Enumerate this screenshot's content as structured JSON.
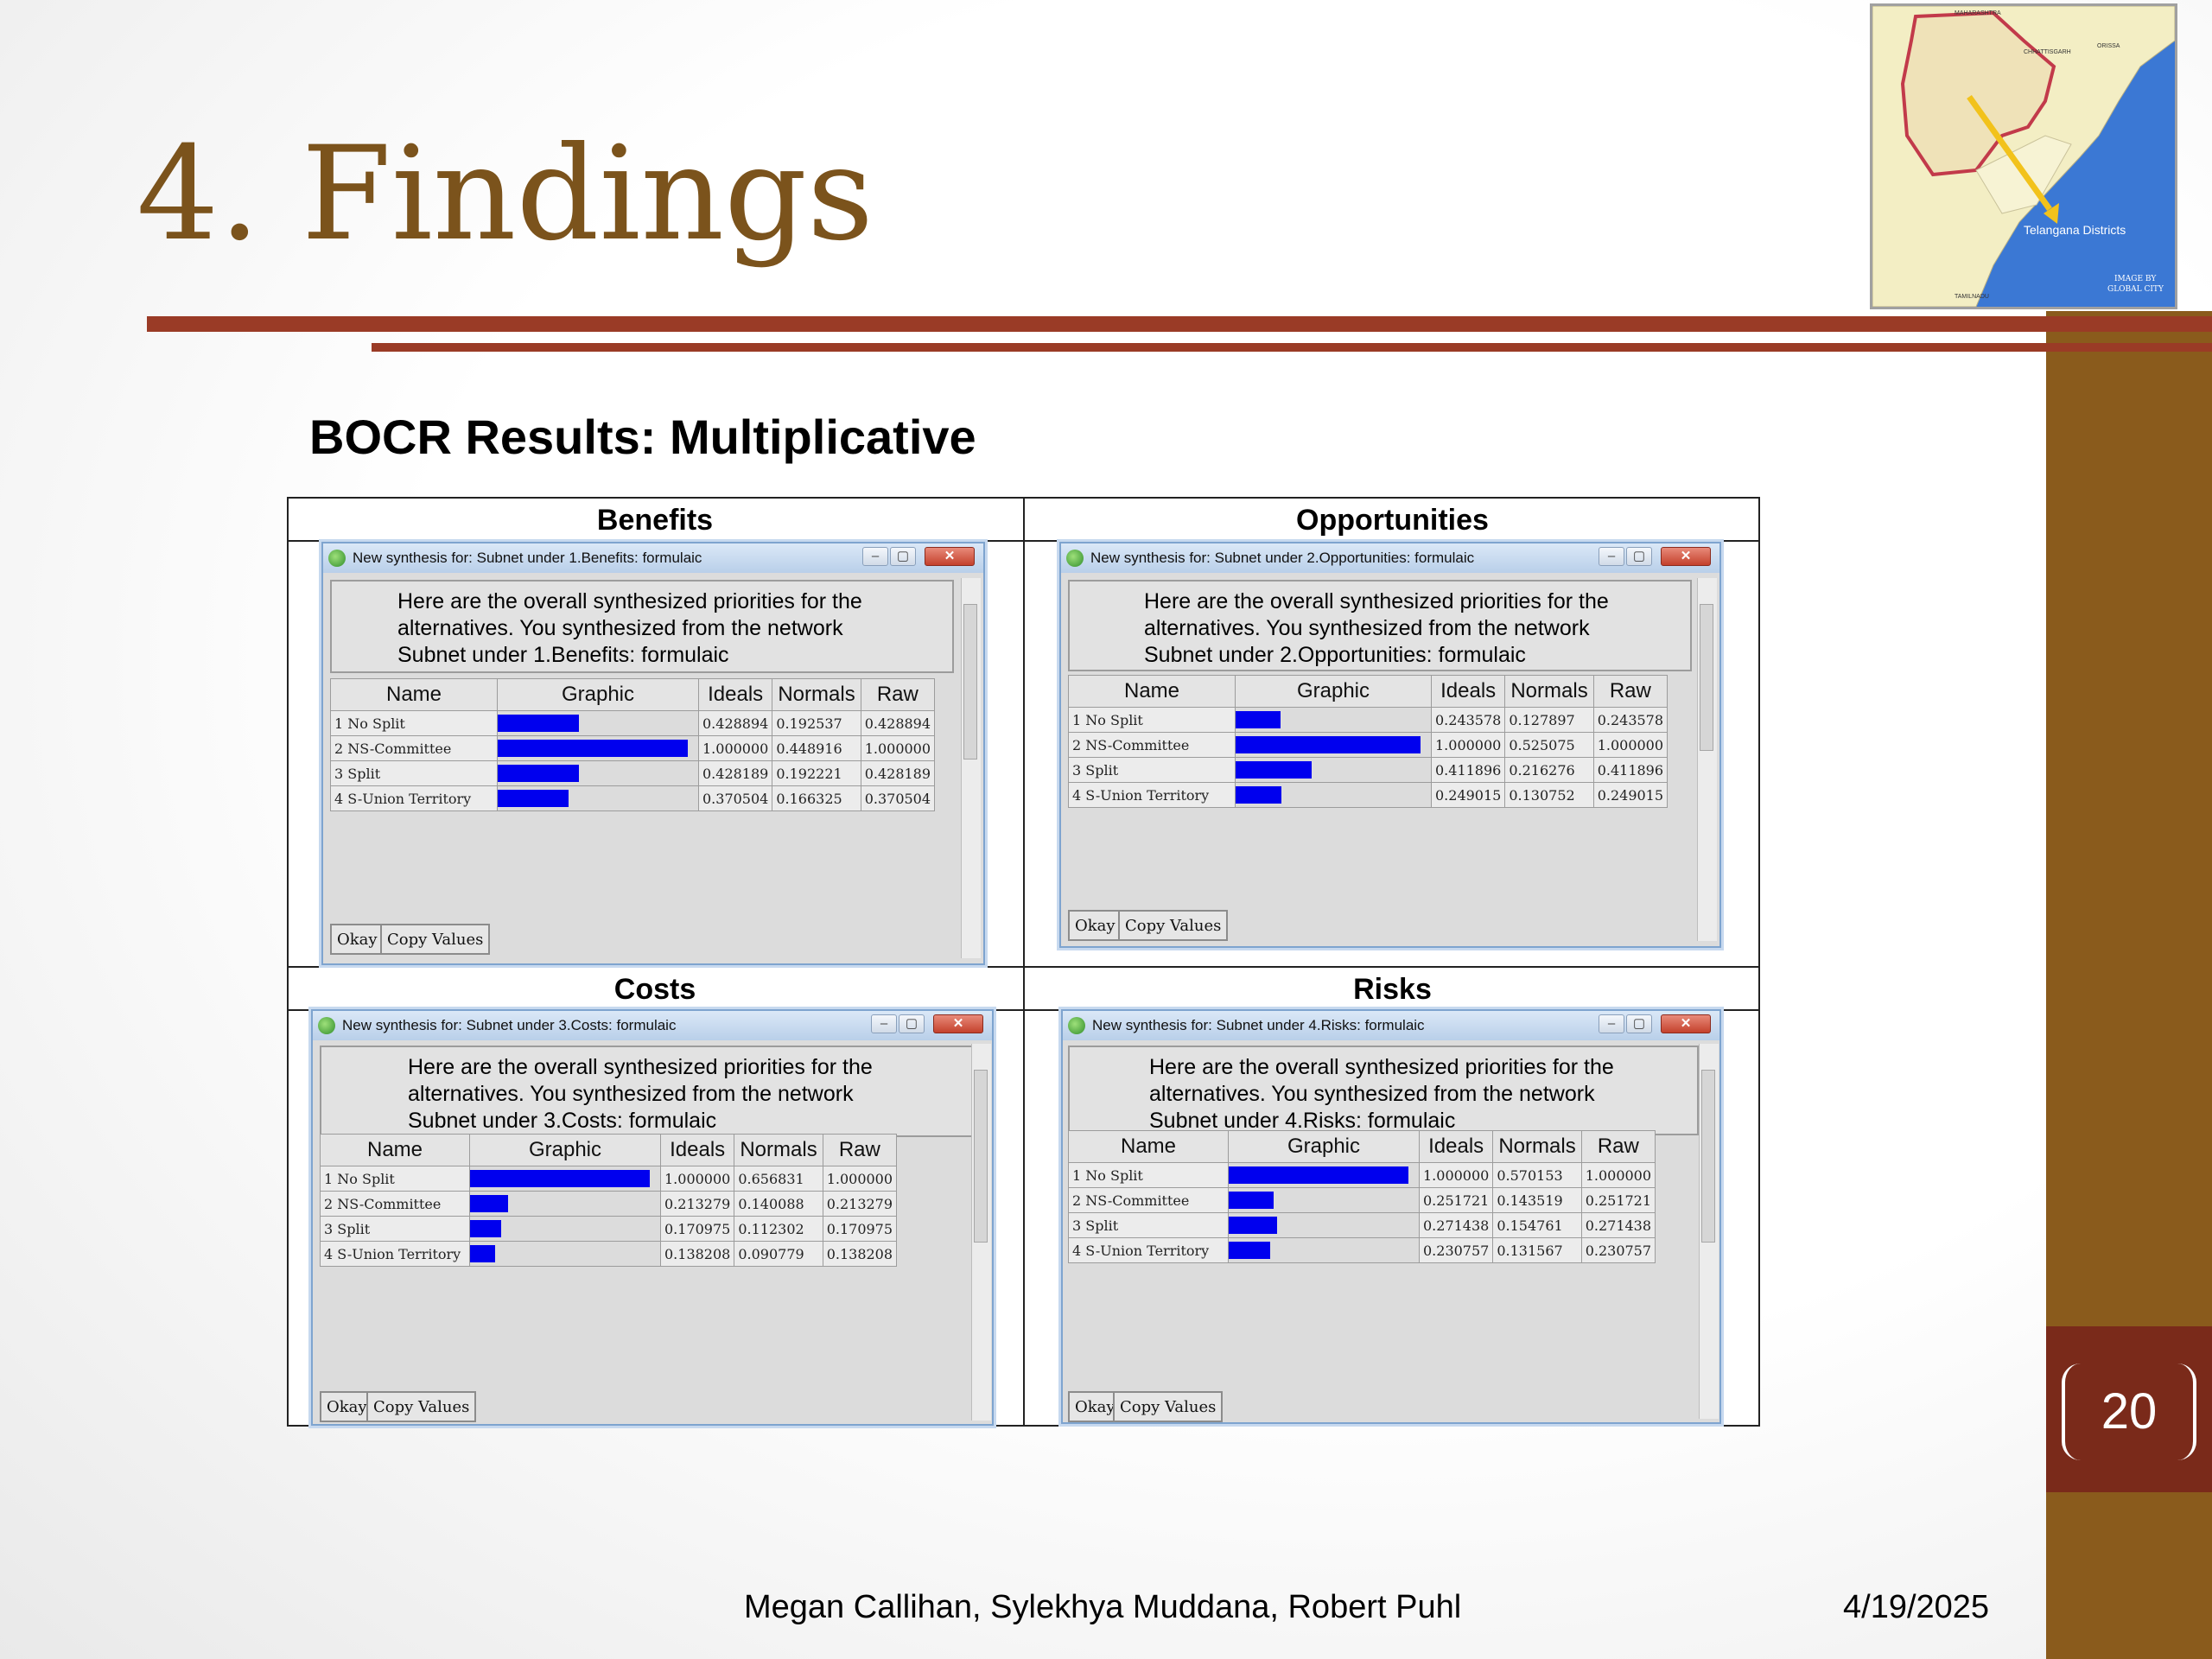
{
  "slide": {
    "title": "4. Findings",
    "subtitle": "BOCR Results:  Multiplicative",
    "page_number": "20",
    "footer_authors": "Megan Callihan, Sylekhya Muddana, Robert Puhl",
    "footer_date": "4/19/2025"
  },
  "map": {
    "label": "Telangana Districts",
    "credit_line1": "IMAGE BY",
    "credit_line2": "GLOBAL CITY",
    "top_label": "MAHARASHTRA",
    "chhattisgarh": "CHHATTISGARH",
    "orissa": "ORISSA",
    "tamilnadu": "TAMILNADU",
    "colors": {
      "land": "#f3eec4",
      "sea": "#3b78d4",
      "border": "#c23a4a",
      "arrow": "#f2c21b"
    }
  },
  "colors": {
    "bar": "#0000ee",
    "title": "#7b531c",
    "rule": "#9a3b26",
    "sidebar": "#8a5b1c",
    "badge": "#7a2a1a"
  },
  "quadrants": [
    {
      "heading": "Benefits",
      "window_title": "New synthesis for: Subnet under 1.Benefits: formulaic",
      "message": [
        "Here are the overall synthesized priorities for the",
        "alternatives.  You synthesized from the network",
        "Subnet under 1.Benefits: formulaic"
      ],
      "columns": [
        "Name",
        "Graphic",
        "Ideals",
        "Normals",
        "Raw"
      ],
      "rows": [
        {
          "name": "1 No Split",
          "ideal": "0.428894",
          "normal": "0.192537",
          "raw": "0.428894",
          "value": 0.428894
        },
        {
          "name": "2 NS-Committee",
          "ideal": "1.000000",
          "normal": "0.448916",
          "raw": "1.000000",
          "value": 1.0
        },
        {
          "name": "3 Split",
          "ideal": "0.428189",
          "normal": "0.192221",
          "raw": "0.428189",
          "value": 0.428189
        },
        {
          "name": "4 S-Union Territory",
          "ideal": "0.370504",
          "normal": "0.166325",
          "raw": "0.370504",
          "value": 0.370504
        }
      ],
      "buttons": [
        "Okay",
        "Copy Values"
      ]
    },
    {
      "heading": "Opportunities",
      "window_title": "New synthesis for: Subnet under 2.Opportunities: formulaic",
      "message": [
        "Here are the overall synthesized priorities for the",
        "alternatives.  You synthesized from the network",
        "Subnet under 2.Opportunities: formulaic"
      ],
      "columns": [
        "Name",
        "Graphic",
        "Ideals",
        "Normals",
        "Raw"
      ],
      "rows": [
        {
          "name": "1 No Split",
          "ideal": "0.243578",
          "normal": "0.127897",
          "raw": "0.243578",
          "value": 0.243578
        },
        {
          "name": "2 NS-Committee",
          "ideal": "1.000000",
          "normal": "0.525075",
          "raw": "1.000000",
          "value": 1.0
        },
        {
          "name": "3 Split",
          "ideal": "0.411896",
          "normal": "0.216276",
          "raw": "0.411896",
          "value": 0.411896
        },
        {
          "name": "4 S-Union Territory",
          "ideal": "0.249015",
          "normal": "0.130752",
          "raw": "0.249015",
          "value": 0.249015
        }
      ],
      "buttons": [
        "Okay",
        "Copy Values"
      ]
    },
    {
      "heading": "Costs",
      "window_title": "New synthesis for: Subnet under 3.Costs: formulaic",
      "message": [
        "Here are the overall synthesized priorities for the",
        "alternatives.  You synthesized from the network",
        "Subnet under 3.Costs: formulaic"
      ],
      "columns": [
        "Name",
        "Graphic",
        "Ideals",
        "Normals",
        "Raw"
      ],
      "rows": [
        {
          "name": "1 No Split",
          "ideal": "1.000000",
          "normal": "0.656831",
          "raw": "1.000000",
          "value": 1.0
        },
        {
          "name": "2 NS-Committee",
          "ideal": "0.213279",
          "normal": "0.140088",
          "raw": "0.213279",
          "value": 0.213279
        },
        {
          "name": "3 Split",
          "ideal": "0.170975",
          "normal": "0.112302",
          "raw": "0.170975",
          "value": 0.170975
        },
        {
          "name": "4 S-Union Territory",
          "ideal": "0.138208",
          "normal": "0.090779",
          "raw": "0.138208",
          "value": 0.138208
        }
      ],
      "buttons": [
        "Okay",
        "Copy Values"
      ]
    },
    {
      "heading": "Risks",
      "window_title": "New synthesis for: Subnet under 4.Risks: formulaic",
      "message": [
        "Here are the overall synthesized priorities for the",
        "alternatives.  You synthesized from the network",
        "Subnet under 4.Risks: formulaic"
      ],
      "columns": [
        "Name",
        "Graphic",
        "Ideals",
        "Normals",
        "Raw"
      ],
      "rows": [
        {
          "name": "1 No Split",
          "ideal": "1.000000",
          "normal": "0.570153",
          "raw": "1.000000",
          "value": 1.0
        },
        {
          "name": "2 NS-Committee",
          "ideal": "0.251721",
          "normal": "0.143519",
          "raw": "0.251721",
          "value": 0.251721
        },
        {
          "name": "3 Split",
          "ideal": "0.271438",
          "normal": "0.154761",
          "raw": "0.271438",
          "value": 0.271438
        },
        {
          "name": "4 S-Union Territory",
          "ideal": "0.230757",
          "normal": "0.131567",
          "raw": "0.230757",
          "value": 0.230757
        }
      ],
      "buttons": [
        "Okay",
        "Copy Values"
      ]
    }
  ]
}
